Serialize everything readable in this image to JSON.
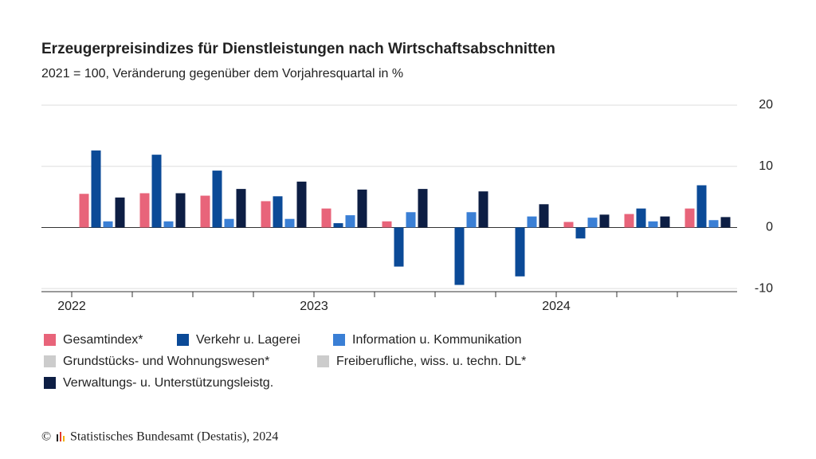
{
  "chart_data": {
    "type": "bar",
    "title": "Erzeugerpreisindizes für Dienstleistungen nach Wirtschaftsabschnitten",
    "subtitle": "2021 = 100, Veränderung gegenüber dem Vorjahresquartal in %",
    "categories": [
      "2022",
      null,
      null,
      null,
      "2023",
      null,
      null,
      null,
      "2024",
      null,
      null
    ],
    "series": [
      {
        "name": "Gesamtindex*",
        "color": "#e8647a",
        "visible": true,
        "values": [
          5.5,
          5.6,
          5.2,
          4.3,
          3.1,
          1.0,
          null,
          null,
          0.9,
          2.2,
          3.1
        ]
      },
      {
        "name": "Verkehr u. Lagerei",
        "color": "#0b4a97",
        "visible": true,
        "values": [
          12.6,
          11.9,
          9.3,
          5.1,
          0.7,
          -6.4,
          -9.4,
          -8.0,
          -1.8,
          3.1,
          6.9
        ]
      },
      {
        "name": "Information u. Kommunikation",
        "color": "#3a7fd5",
        "visible": true,
        "values": [
          1.0,
          1.0,
          1.4,
          1.4,
          2.0,
          2.5,
          2.5,
          1.8,
          1.6,
          1.0,
          1.2
        ]
      },
      {
        "name": "Grundstücks- und Wohnungswesen*",
        "color": "#cccccc",
        "visible": false,
        "values": [
          null,
          null,
          null,
          null,
          null,
          null,
          null,
          null,
          null,
          null,
          null
        ]
      },
      {
        "name": "Freiberufliche, wiss. u. techn. DL*",
        "color": "#cccccc",
        "visible": false,
        "values": [
          null,
          null,
          null,
          null,
          null,
          null,
          null,
          null,
          null,
          null,
          null
        ]
      },
      {
        "name": "Verwaltungs- u. Unterstützungsleistg.",
        "color": "#0d1e44",
        "visible": true,
        "values": [
          4.9,
          5.6,
          6.3,
          7.5,
          6.2,
          6.3,
          5.9,
          3.8,
          2.1,
          1.8,
          1.7
        ]
      }
    ],
    "ylim": [
      -10.5,
      20
    ],
    "yticks": [
      -10,
      0,
      10,
      20
    ],
    "grid": true,
    "copyright": "©",
    "source": "Statistisches Bundesamt (Destatis), 2024"
  }
}
